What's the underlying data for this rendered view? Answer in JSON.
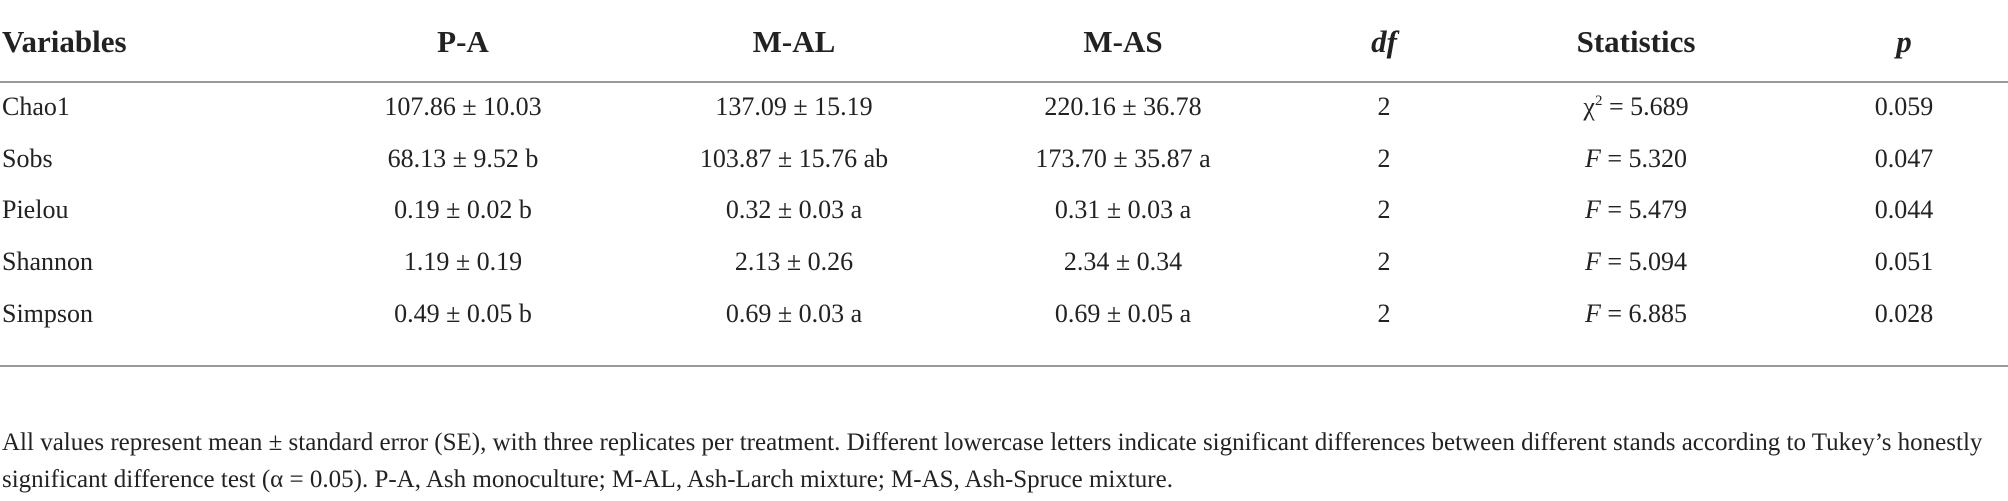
{
  "table": {
    "header": [
      "Variables",
      "P-A",
      "M-AL",
      "M-AS",
      "df",
      "Statistics",
      "p"
    ],
    "rows": [
      [
        "Chao1",
        "107.86 ± 10.03",
        "137.09 ± 15.19",
        "220.16 ± 36.78",
        "2",
        {
          "symbol": "χ",
          "sup": "2",
          "value": " = 5.689"
        },
        "0.059"
      ],
      [
        "Sobs",
        "68.13 ± 9.52 b",
        "103.87 ± 15.76 ab",
        "173.70 ± 35.87 a",
        "2",
        {
          "symbol": "F",
          "value": " = 5.320"
        },
        "0.047"
      ],
      [
        "Pielou",
        "0.19 ± 0.02 b",
        "0.32 ± 0.03 a",
        "0.31 ± 0.03 a",
        "2",
        {
          "symbol": "F",
          "value": " = 5.479"
        },
        "0.044"
      ],
      [
        "Shannon",
        "1.19 ± 0.19",
        "2.13 ± 0.26",
        "2.34 ± 0.34",
        "2",
        {
          "symbol": "F",
          "value": " = 5.094"
        },
        "0.051"
      ],
      [
        "Simpson",
        "0.49 ± 0.05 b",
        "0.69 ± 0.03 a",
        "0.69 ± 0.05 a",
        "2",
        {
          "symbol": "F",
          "value": " = 6.885"
        },
        "0.028"
      ]
    ],
    "footnote": "All values represent mean ± standard error (SE), with three replicates per treatment. Different lowercase letters indicate significant differences between different stands according to Tukey’s honestly significant difference test (α = 0.05). P-A, Ash monoculture; M-AL, Ash-Larch mixture; M-AS, Ash-Spruce mixture."
  }
}
